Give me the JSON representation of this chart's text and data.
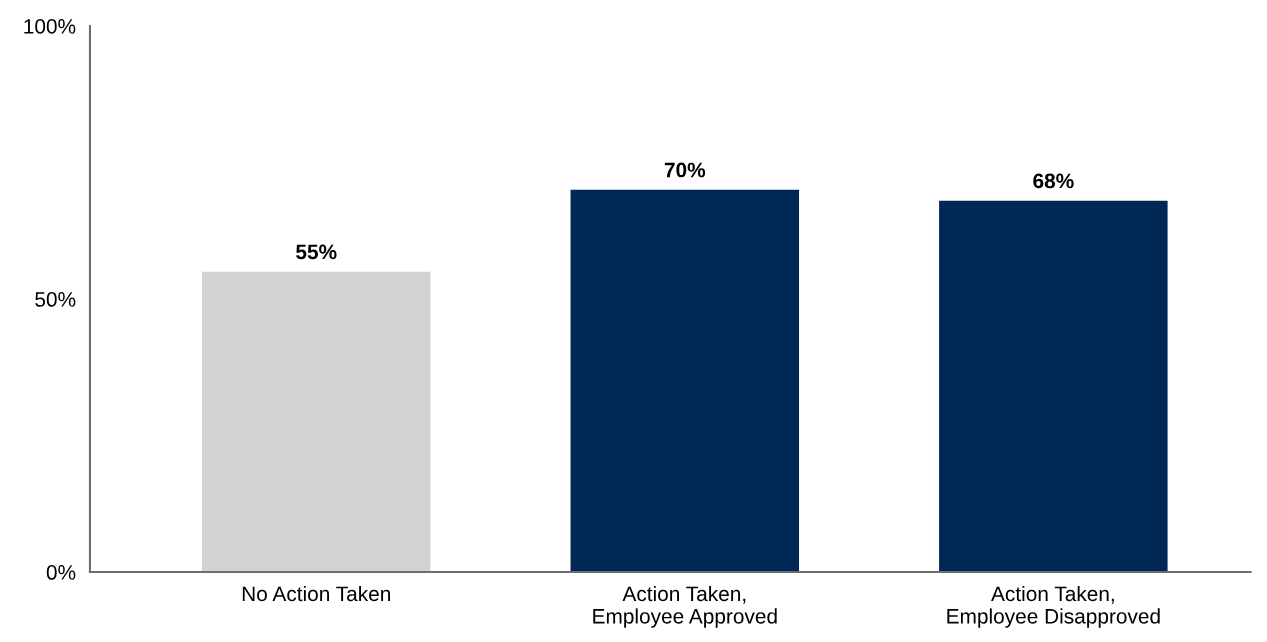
{
  "chart_data": {
    "type": "bar",
    "categories": [
      "No Action Taken",
      "Action Taken,\nEmployee Approved",
      "Action Taken,\nEmployee Disapproved"
    ],
    "values": [
      55,
      70,
      68
    ],
    "colors": [
      "#d3d3d3",
      "#002855",
      "#002855"
    ],
    "value_labels": [
      "55%",
      "70%",
      "68%"
    ],
    "ylim": [
      0,
      100
    ],
    "yticks": [
      {
        "value": 0,
        "label": "0%"
      },
      {
        "value": 50,
        "label": "50%"
      },
      {
        "value": 100,
        "label": "100%"
      }
    ],
    "grid": false,
    "legend": false
  }
}
